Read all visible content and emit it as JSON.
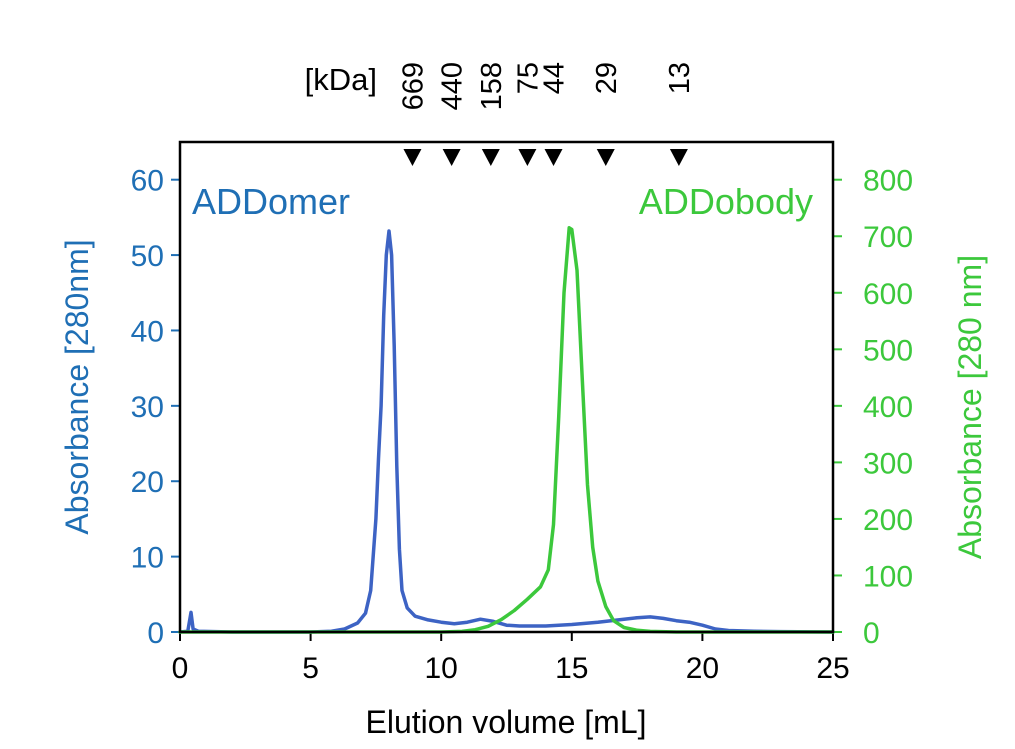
{
  "chart_data": {
    "type": "line",
    "xlabel": "Elution volume [mL]",
    "ylabel_left": "Absorbance [280nm]",
    "ylabel_right": "Absorbance [280 nm]",
    "xlim": [
      0,
      25
    ],
    "ylim_left": [
      0,
      65
    ],
    "ylim_right": [
      0,
      866.7
    ],
    "x_ticks": [
      0,
      5,
      10,
      15,
      20,
      25
    ],
    "y_ticks_left": [
      0,
      10,
      20,
      30,
      40,
      50,
      60
    ],
    "y_ticks_right": [
      0,
      100,
      200,
      300,
      400,
      500,
      600,
      700,
      800
    ],
    "colors": {
      "left_axis": "#1f6fb5",
      "right_axis": "#3cc83c",
      "series1": "#3d63c4",
      "series2": "#3cc83c"
    },
    "markers": {
      "unit_label": "[kDa]",
      "items": [
        {
          "label": "669",
          "x": 8.9
        },
        {
          "label": "440",
          "x": 10.4
        },
        {
          "label": "158",
          "x": 11.9
        },
        {
          "label": "75",
          "x": 13.3
        },
        {
          "label": "44",
          "x": 14.3
        },
        {
          "label": "29",
          "x": 16.3
        },
        {
          "label": "13",
          "x": 19.1
        }
      ]
    },
    "series": [
      {
        "name": "ADDomer",
        "axis": "left",
        "points": [
          [
            0,
            0
          ],
          [
            0.3,
            0.1
          ],
          [
            0.42,
            2.6
          ],
          [
            0.5,
            0.4
          ],
          [
            0.7,
            0.1
          ],
          [
            2,
            0
          ],
          [
            4,
            0
          ],
          [
            5,
            0
          ],
          [
            5.8,
            0.1
          ],
          [
            6.3,
            0.4
          ],
          [
            6.8,
            1.2
          ],
          [
            7.1,
            2.5
          ],
          [
            7.3,
            5.5
          ],
          [
            7.5,
            15
          ],
          [
            7.6,
            23
          ],
          [
            7.7,
            30
          ],
          [
            7.8,
            42
          ],
          [
            7.9,
            50
          ],
          [
            8.0,
            53.2
          ],
          [
            8.1,
            50
          ],
          [
            8.2,
            38
          ],
          [
            8.3,
            22
          ],
          [
            8.4,
            11
          ],
          [
            8.5,
            5.5
          ],
          [
            8.7,
            3.2
          ],
          [
            9.0,
            2.1
          ],
          [
            9.5,
            1.6
          ],
          [
            10.0,
            1.3
          ],
          [
            10.5,
            1.1
          ],
          [
            11.0,
            1.3
          ],
          [
            11.5,
            1.7
          ],
          [
            12.0,
            1.4
          ],
          [
            12.5,
            0.9
          ],
          [
            13.0,
            0.8
          ],
          [
            14.0,
            0.8
          ],
          [
            15.0,
            1.0
          ],
          [
            16.0,
            1.3
          ],
          [
            17.0,
            1.7
          ],
          [
            17.5,
            1.9
          ],
          [
            18.0,
            2.0
          ],
          [
            18.5,
            1.8
          ],
          [
            19.0,
            1.5
          ],
          [
            19.5,
            1.3
          ],
          [
            20.0,
            0.9
          ],
          [
            20.5,
            0.4
          ],
          [
            21.0,
            0.2
          ],
          [
            22.0,
            0.1
          ],
          [
            23.0,
            0.05
          ],
          [
            25.0,
            0
          ]
        ]
      },
      {
        "name": "ADDobody",
        "axis": "right",
        "points": [
          [
            0,
            0
          ],
          [
            5,
            0
          ],
          [
            10,
            0
          ],
          [
            10.8,
            1
          ],
          [
            11.3,
            4
          ],
          [
            11.8,
            10
          ],
          [
            12.3,
            22
          ],
          [
            12.8,
            38
          ],
          [
            13.3,
            58
          ],
          [
            13.8,
            80
          ],
          [
            14.1,
            110
          ],
          [
            14.3,
            190
          ],
          [
            14.5,
            380
          ],
          [
            14.7,
            600
          ],
          [
            14.9,
            715
          ],
          [
            15.0,
            712
          ],
          [
            15.2,
            640
          ],
          [
            15.4,
            450
          ],
          [
            15.6,
            260
          ],
          [
            15.8,
            150
          ],
          [
            16.0,
            90
          ],
          [
            16.3,
            45
          ],
          [
            16.6,
            20
          ],
          [
            17.0,
            8
          ],
          [
            17.5,
            3
          ],
          [
            18.0,
            1
          ],
          [
            19.0,
            0
          ],
          [
            25.0,
            0
          ]
        ]
      }
    ]
  }
}
